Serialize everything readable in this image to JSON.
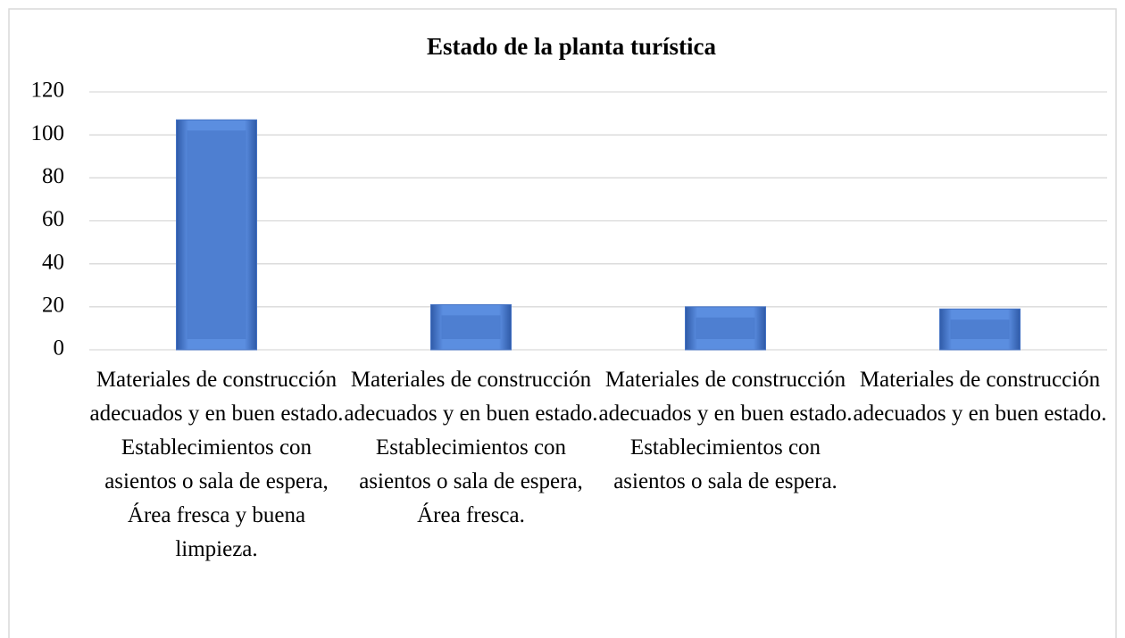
{
  "chart_data": {
    "type": "bar",
    "title": "Estado de la planta turística",
    "categories": [
      "Materiales de construcción adecuados y en buen estado. Establecimientos con asientos o sala de espera, Área fresca y buena limpieza.",
      "Materiales de construcción adecuados y en buen estado. Establecimientos con asientos o sala de espera, Área fresca.",
      "Materiales de construcción adecuados y en buen estado. Establecimientos con asientos o sala de espera.",
      "Materiales de construcción adecuados y en buen estado."
    ],
    "values": [
      107,
      21,
      20,
      19
    ],
    "color": "#4472c4",
    "ylim": [
      0,
      120
    ],
    "yticks": [
      0,
      20,
      40,
      60,
      80,
      100,
      120
    ],
    "grid": true
  }
}
